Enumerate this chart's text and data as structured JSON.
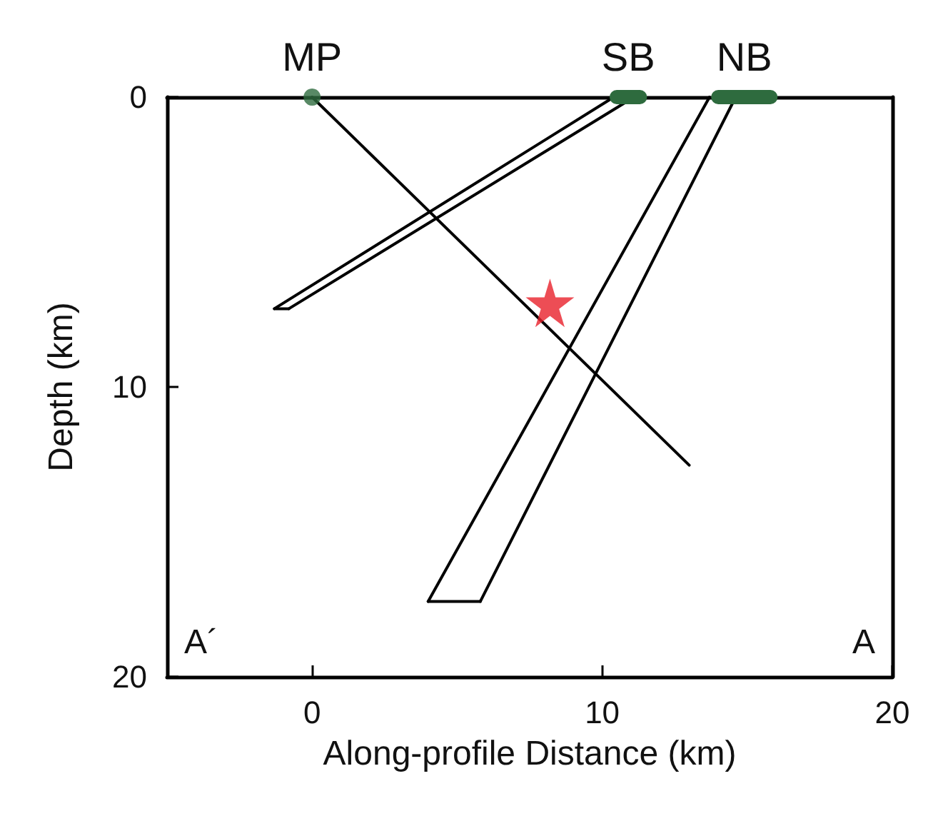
{
  "chart_data": {
    "type": "line",
    "xlabel": "Along-profile Distance (km)",
    "ylabel": "Depth (km)",
    "xlim": [
      -5,
      20
    ],
    "xticks": [
      0,
      10,
      20
    ],
    "ylim": [
      20,
      0
    ],
    "yticks": [
      0,
      10,
      20
    ],
    "grid": false,
    "marker": "none",
    "line_style": "solid",
    "series": [
      {
        "color": "#000000",
        "x": [
          0,
          13
        ],
        "values": [
          0,
          12.7
        ]
      },
      {
        "color": "#000000",
        "x": [
          -1.3,
          10.4
        ],
        "values": [
          7.3,
          0
        ]
      },
      {
        "color": "#000000",
        "x": [
          -0.8,
          11.1
        ],
        "values": [
          7.3,
          0
        ]
      },
      {
        "color": "#000000",
        "x": [
          -1.3,
          -0.8
        ],
        "values": [
          7.3,
          7.3
        ]
      },
      {
        "color": "#000000",
        "x": [
          4.0,
          13.7
        ],
        "values": [
          17.4,
          0
        ]
      },
      {
        "color": "#000000",
        "x": [
          5.8,
          14.6
        ],
        "values": [
          17.4,
          0
        ]
      },
      {
        "color": "#000000",
        "x": [
          4.0,
          5.8
        ],
        "values": [
          17.4,
          17.4
        ]
      },
      {
        "type": "scatter",
        "marker": "circle",
        "color": "#2e6b3e",
        "x": [
          0
        ],
        "values": [
          0
        ]
      },
      {
        "color": "#2e6b3e",
        "x": [
          10.5,
          11.3
        ],
        "values": [
          0,
          0
        ]
      },
      {
        "color": "#2e6b3e",
        "x": [
          14.0,
          15.8
        ],
        "values": [
          0,
          0
        ]
      },
      {
        "type": "scatter",
        "marker": "star",
        "color": "#e8202a",
        "x": [
          8.2
        ],
        "values": [
          7.1
        ]
      }
    ],
    "annotations": [
      {
        "text": "MP",
        "x": 0,
        "y": 0
      },
      {
        "text": "SB",
        "x": 10.9,
        "y": 0
      },
      {
        "text": "NB",
        "x": 14.9,
        "y": 0
      },
      "A´",
      "A"
    ]
  }
}
